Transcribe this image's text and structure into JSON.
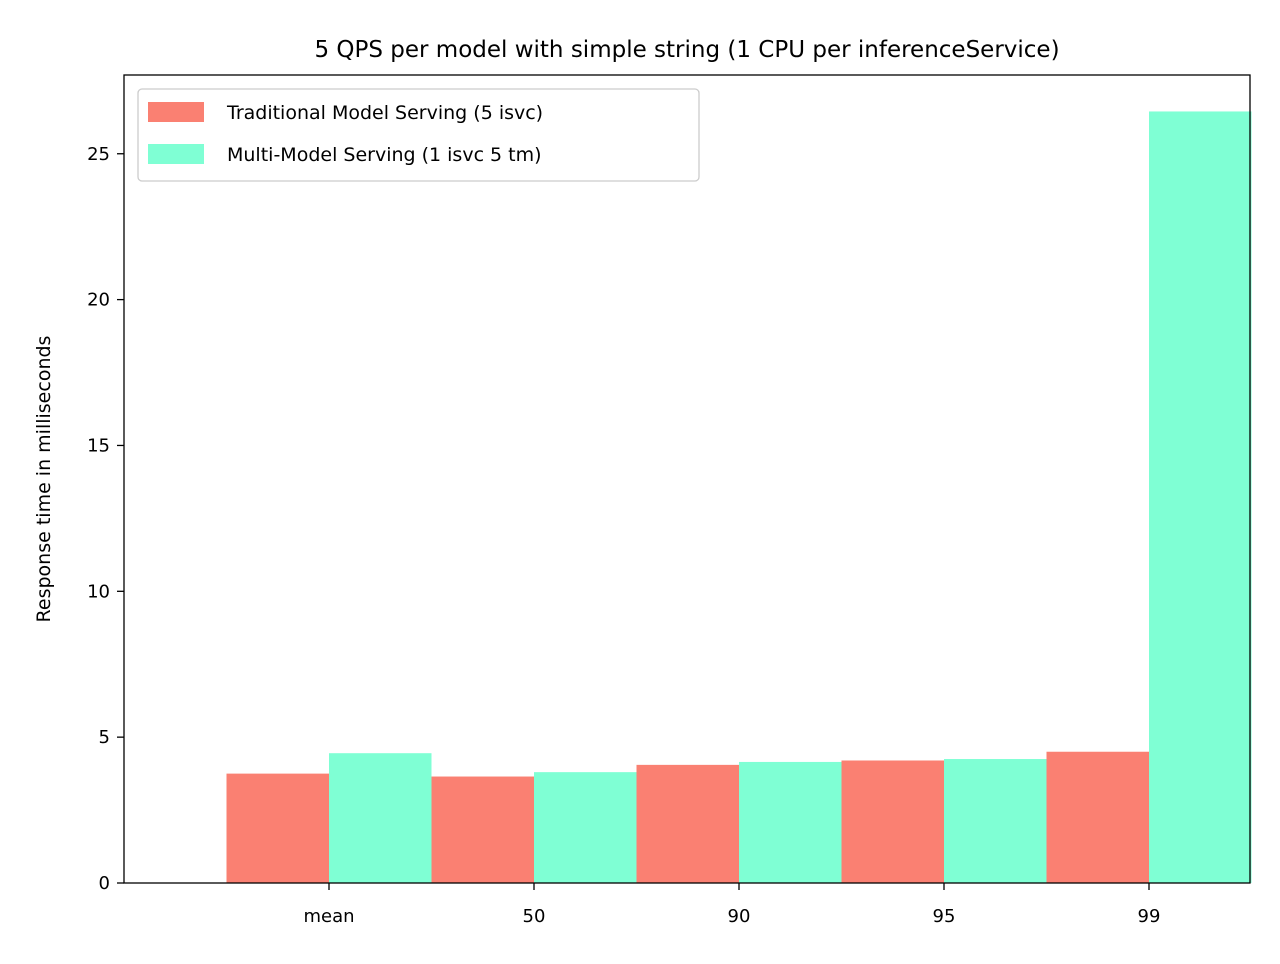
{
  "chart_data": {
    "type": "bar",
    "title": "5 QPS per model with simple string (1 CPU per inferenceService)",
    "xlabel": "",
    "ylabel": "Response time in milliseconds",
    "categories": [
      "mean",
      "50",
      "90",
      "95",
      "99"
    ],
    "series": [
      {
        "name": "Traditional Model Serving (5 isvc)",
        "color": "#fa8072",
        "values": [
          3.75,
          3.65,
          4.05,
          4.2,
          4.5
        ]
      },
      {
        "name": "Multi-Model Serving (1 isvc 5 tm)",
        "color": "#7fffd4",
        "values": [
          4.45,
          3.8,
          4.15,
          4.25,
          26.45
        ]
      }
    ],
    "ylim": [
      0,
      27.7
    ],
    "yticks": [
      0,
      5,
      10,
      15,
      20,
      25
    ],
    "grid": false,
    "legend_position": "top-left"
  }
}
